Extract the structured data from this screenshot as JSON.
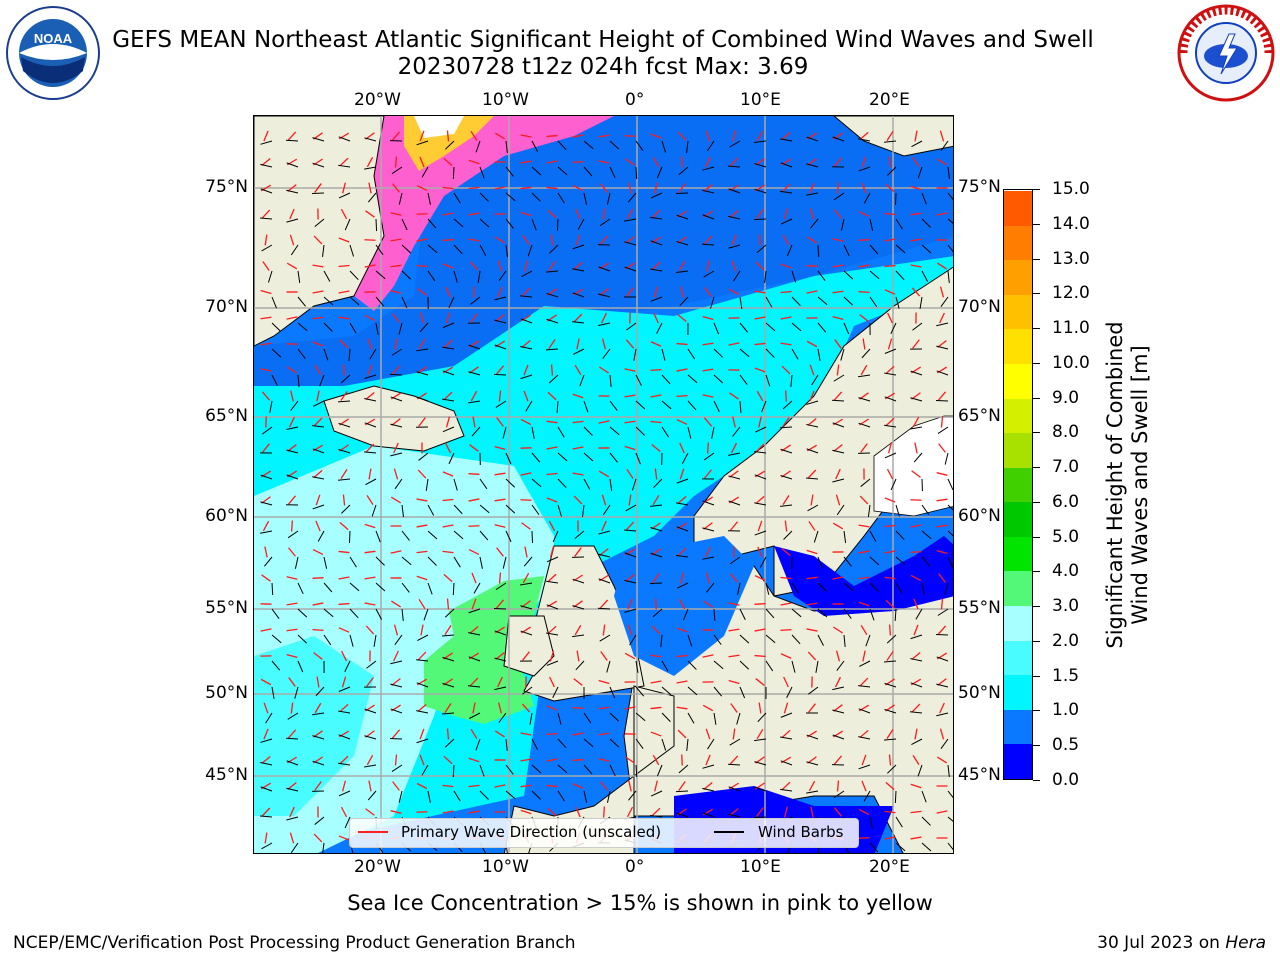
{
  "header": {
    "title_line1": "GEFS MEAN Northeast Atlantic Significant Height of Combined Wind Waves and Swell",
    "title_line2": "20230728 t12z 024h fcst   Max: 3.69"
  },
  "logos": {
    "left": {
      "text": "NOAA",
      "icon": "noaa-logo"
    },
    "right": {
      "icon": "nws-logo"
    }
  },
  "map": {
    "lon_ticks_top": [
      "20°W",
      "10°W",
      "0°",
      "10°E",
      "20°E"
    ],
    "lon_ticks_bottom": [
      "20°W",
      "10°W",
      "0°",
      "10°E",
      "20°E"
    ],
    "lat_ticks_left": [
      "75°N",
      "70°N",
      "65°N",
      "60°N",
      "55°N",
      "50°N",
      "45°N"
    ],
    "lat_ticks_right": [
      "75°N",
      "70°N",
      "65°N",
      "60°N",
      "55°N",
      "50°N",
      "45°N"
    ],
    "legend": {
      "wave_dir": "Primary Wave Direction (unscaled)",
      "wind_barbs": "Wind Barbs"
    }
  },
  "colorbar": {
    "title": "Significant Height of Combined Wind Waves and Swell [m]",
    "labels": [
      "15.0",
      "14.0",
      "13.0",
      "12.0",
      "11.0",
      "10.0",
      "9.0",
      "8.0",
      "7.0",
      "6.0",
      "5.0",
      "4.0",
      "3.0",
      "2.0",
      "1.5",
      "1.0",
      "0.5",
      "0.0"
    ],
    "colors": [
      "#0000ff",
      "#0a78ff",
      "#00f5ff",
      "#48fcff",
      "#a8ffff",
      "#54f878",
      "#00e400",
      "#00c800",
      "#40d000",
      "#a8e000",
      "#d4f000",
      "#ffff00",
      "#ffe000",
      "#ffc000",
      "#ffa000",
      "#ff7d00",
      "#ff5a00",
      "#ff3200",
      "#ff0000"
    ]
  },
  "subtitle": "Sea Ice Concentration > 15% is shown in pink to yellow",
  "footer": {
    "left": "NCEP/EMC/Verification Post Processing Product Generation Branch",
    "right_date": "30 Jul 2023 on ",
    "right_machine": "Hera"
  }
}
